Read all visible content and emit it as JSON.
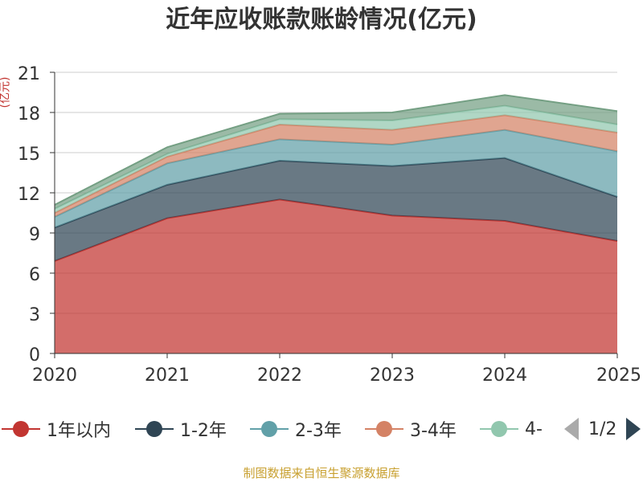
{
  "chart_data": {
    "type": "area",
    "stacked": true,
    "title": "近年应收账款账龄情况(亿元)",
    "ylabel": "(亿元)",
    "xlabel": "",
    "categories": [
      "2020",
      "2021",
      "2022",
      "2023",
      "2024",
      "2025"
    ],
    "ylim": [
      0,
      21
    ],
    "yticks": [
      "0",
      "3",
      "6",
      "9",
      "12",
      "15",
      "18",
      "21"
    ],
    "grid": true,
    "series": [
      {
        "name": "1年以内",
        "color": "#c23531",
        "values": [
          6.9,
          10.1,
          11.5,
          10.3,
          9.9,
          8.4
        ]
      },
      {
        "name": "1-2年",
        "color": "#2f4554",
        "values": [
          2.5,
          2.5,
          2.9,
          3.7,
          4.7,
          3.3
        ]
      },
      {
        "name": "2-3年",
        "color": "#61a0a8",
        "values": [
          0.8,
          1.6,
          1.6,
          1.6,
          2.1,
          3.4
        ]
      },
      {
        "name": "3-4年",
        "color": "#d48265",
        "values": [
          0.3,
          0.5,
          1.1,
          1.1,
          1.1,
          1.4
        ]
      },
      {
        "name": "4-",
        "color": "#91c7ae",
        "values": [
          0.3,
          0.2,
          0.4,
          0.7,
          0.7,
          0.6
        ]
      },
      {
        "name": "",
        "color": "#749f83",
        "values": [
          0.3,
          0.5,
          0.4,
          0.6,
          0.8,
          1.0
        ]
      }
    ]
  },
  "legend": {
    "items": [
      {
        "name": "1年以内",
        "color": "#c23531"
      },
      {
        "name": "1-2年",
        "color": "#2f4554"
      },
      {
        "name": "2-3年",
        "color": "#61a0a8"
      },
      {
        "name": "3-4年",
        "color": "#d48265"
      },
      {
        "name": "4-",
        "color": "#91c7ae"
      }
    ],
    "page_text": "1/2"
  },
  "source": "制图数据来自恒生聚源数据库"
}
